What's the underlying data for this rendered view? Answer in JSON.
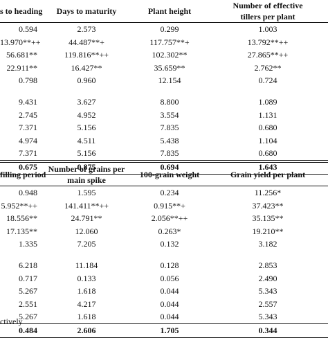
{
  "table1": {
    "headers": [
      "s to heading",
      "Days to maturity",
      "Plant height",
      "Number of effective\ntillers per plant"
    ],
    "rows": [
      [
        "0.594",
        "2.573",
        "0.299",
        "1.003"
      ],
      [
        "13.970**++",
        "44.487**+",
        "117.757**+",
        "13.792**++"
      ],
      [
        "56.681**",
        "119.816**++",
        "102.302**",
        "27.865**++"
      ],
      [
        "22.911**",
        "16.427**",
        "35.659**",
        "2.762**"
      ],
      [
        "0.798",
        "0.960",
        "12.154",
        "0.724"
      ],
      [
        "",
        "",
        "",
        ""
      ],
      [
        "9.431",
        "3.627",
        "8.800",
        "1.089"
      ],
      [
        "2.745",
        "4.952",
        "3.554",
        "1.131"
      ],
      [
        "7.371",
        "5.156",
        "7.835",
        "0.680"
      ],
      [
        "4.974",
        "4.511",
        "5.438",
        "1.104"
      ],
      [
        "7.371",
        "5.156",
        "7.835",
        "0.680"
      ]
    ],
    "last_row": [
      "0.675",
      "0.875",
      "0.694",
      "1.643"
    ]
  },
  "table2": {
    "headers": [
      "filling period",
      "Number of grains per\nmain spike",
      "100-grain weight",
      "Grain yield per plant"
    ],
    "rows": [
      [
        "0.948",
        "1.595",
        "0.234",
        "11.256*"
      ],
      [
        "5.952**++",
        "141.411**++",
        "0.915**+",
        "37.423**"
      ],
      [
        "18.556**",
        "24.791**",
        "2.056**++",
        "35.135**"
      ],
      [
        "17.135**",
        "12.060",
        "0.263*",
        "19.210**"
      ],
      [
        "1.335",
        "7.205",
        "0.132",
        "3.182"
      ],
      [
        "",
        "",
        "",
        ""
      ],
      [
        "6.218",
        "11.184",
        "0.128",
        "2.853"
      ],
      [
        "0.717",
        "0.133",
        "0.056",
        "2.490"
      ],
      [
        "5.267",
        "1.618",
        "0.044",
        "5.343"
      ],
      [
        "2.551",
        "4.217",
        "0.044",
        "2.557"
      ],
      [
        "5.267",
        "1.618",
        "0.044",
        "5.343"
      ]
    ],
    "last_row": [
      "0.484",
      "2.606",
      "1.705",
      "0.344"
    ]
  },
  "footnote": "ctively"
}
